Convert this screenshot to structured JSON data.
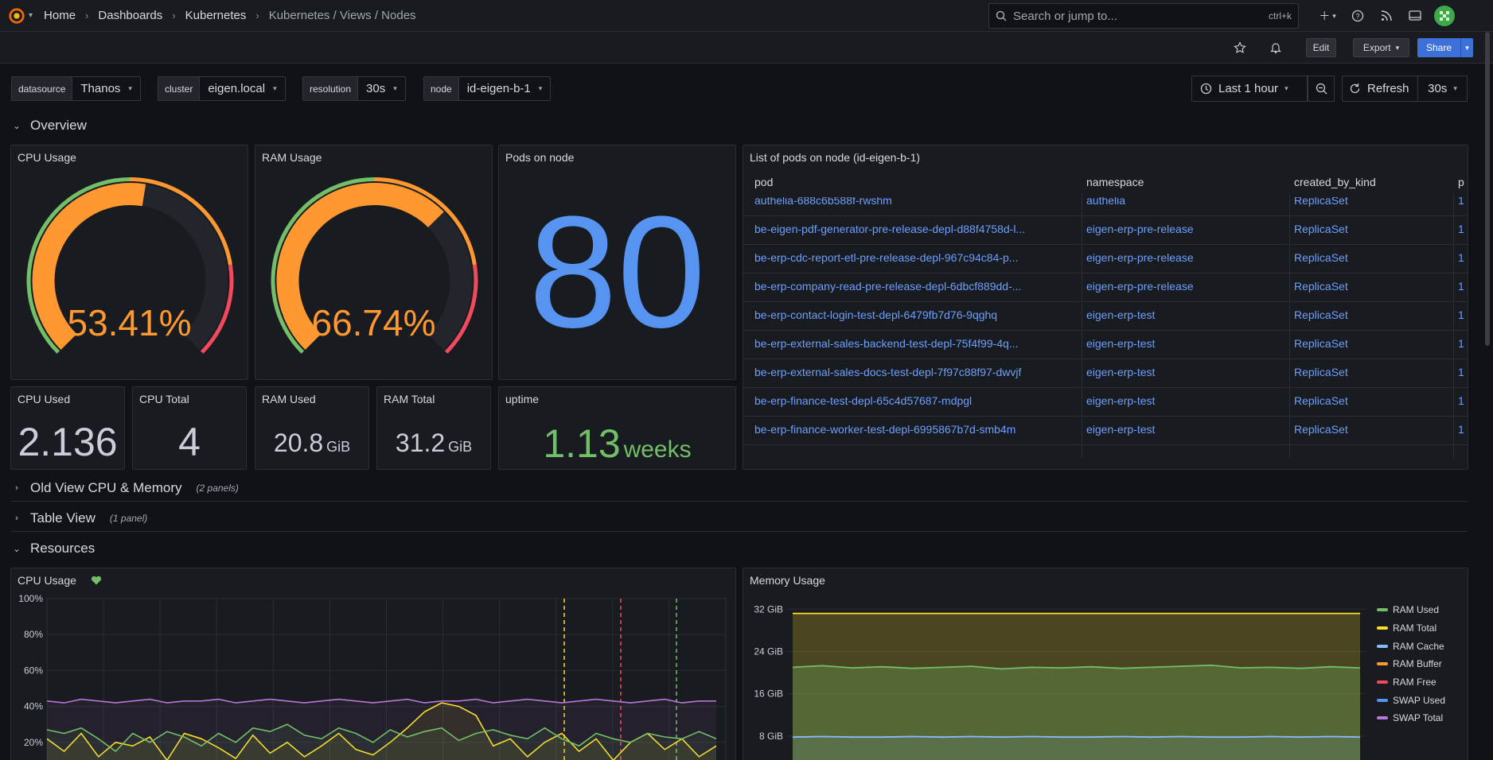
{
  "nav": {
    "breadcrumbs": [
      "Home",
      "Dashboards",
      "Kubernetes",
      "Kubernetes / Views / Nodes"
    ],
    "search_placeholder": "Search or jump to...",
    "search_shortcut": "ctrl+k"
  },
  "toolbar": {
    "edit_label": "Edit",
    "export_label": "Export",
    "share_label": "Share"
  },
  "variables": [
    {
      "label": "datasource",
      "value": "Thanos"
    },
    {
      "label": "cluster",
      "value": "eigen.local"
    },
    {
      "label": "resolution",
      "value": "30s"
    },
    {
      "label": "node",
      "value": "id-eigen-b-1"
    }
  ],
  "time": {
    "range": "Last 1 hour",
    "refresh_label": "Refresh",
    "refresh_interval": "30s"
  },
  "rows": {
    "overview": "Overview",
    "old_view": "Old View CPU & Memory",
    "old_view_count": "(2 panels)",
    "table_view": "Table View",
    "table_view_count": "(1 panel)",
    "resources": "Resources"
  },
  "panels": {
    "cpu_usage": {
      "title": "CPU Usage",
      "value": "53.41%",
      "percent": 53.41
    },
    "ram_usage": {
      "title": "RAM Usage",
      "value": "66.74%",
      "percent": 66.74
    },
    "pods": {
      "title": "Pods on node",
      "value": "80"
    },
    "cpu_used": {
      "title": "CPU Used",
      "value": "2.136"
    },
    "cpu_total": {
      "title": "CPU Total",
      "value": "4"
    },
    "ram_used": {
      "title": "RAM Used",
      "value": "20.8",
      "unit": "GiB"
    },
    "ram_total": {
      "title": "RAM Total",
      "value": "31.2",
      "unit": "GiB"
    },
    "uptime": {
      "title": "uptime",
      "value": "1.13",
      "unit": "weeks"
    },
    "pod_list": {
      "title": "List of pods on node (id-eigen-b-1)",
      "columns": [
        "pod",
        "namespace",
        "created_by_kind",
        "p"
      ],
      "rows": [
        [
          "authelia-688c6b588f-rwshm",
          "authelia",
          "ReplicaSet",
          "1"
        ],
        [
          "be-eigen-pdf-generator-pre-release-depl-d88f4758d-l...",
          "eigen-erp-pre-release",
          "ReplicaSet",
          "1"
        ],
        [
          "be-erp-cdc-report-etl-pre-release-depl-967c94c84-p...",
          "eigen-erp-pre-release",
          "ReplicaSet",
          "1"
        ],
        [
          "be-erp-company-read-pre-release-depl-6dbcf889dd-...",
          "eigen-erp-pre-release",
          "ReplicaSet",
          "1"
        ],
        [
          "be-erp-contact-login-test-depl-6479fb7d76-9qghq",
          "eigen-erp-test",
          "ReplicaSet",
          "1"
        ],
        [
          "be-erp-external-sales-backend-test-depl-75f4f99-4q...",
          "eigen-erp-test",
          "ReplicaSet",
          "1"
        ],
        [
          "be-erp-external-sales-docs-test-depl-7f97c88f97-dwvjf",
          "eigen-erp-test",
          "ReplicaSet",
          "1"
        ],
        [
          "be-erp-finance-test-depl-65c4d57687-mdpgl",
          "eigen-erp-test",
          "ReplicaSet",
          "1"
        ],
        [
          "be-erp-finance-worker-test-depl-6995867b7d-smb4m",
          "eigen-erp-test",
          "ReplicaSet",
          "1"
        ]
      ]
    },
    "cpu_chart": {
      "title": "CPU Usage",
      "yticks": [
        "100%",
        "80%",
        "60%",
        "40%",
        "20%"
      ]
    },
    "mem_chart": {
      "title": "Memory Usage",
      "yticks": [
        "32 GiB",
        "24 GiB",
        "16 GiB",
        "8 GiB"
      ],
      "legend": [
        {
          "name": "RAM Used",
          "color": "#73bf69"
        },
        {
          "name": "RAM Total",
          "color": "#fade2a"
        },
        {
          "name": "RAM Cache",
          "color": "#8ab8ff"
        },
        {
          "name": "RAM Buffer",
          "color": "#ff9830"
        },
        {
          "name": "RAM Free",
          "color": "#f2495c"
        },
        {
          "name": "SWAP Used",
          "color": "#5794f2"
        },
        {
          "name": "SWAP Total",
          "color": "#b877d9"
        }
      ]
    }
  },
  "chart_data": [
    {
      "type": "line",
      "title": "CPU Usage",
      "ylim": [
        0,
        100
      ],
      "yticks": [
        "100%",
        "80%",
        "60%",
        "40%",
        "20%"
      ],
      "series": [
        {
          "color": "#b877d9",
          "values": [
            43,
            42,
            44,
            43,
            42,
            43,
            44,
            42,
            43,
            43,
            44,
            42,
            43,
            44,
            43,
            42,
            43,
            44,
            43,
            42,
            43,
            44,
            42,
            43,
            43,
            44,
            42,
            43,
            44,
            43,
            42,
            43,
            44,
            43,
            42,
            43,
            44,
            42,
            43,
            43
          ]
        },
        {
          "color": "#fade2a",
          "values": [
            22,
            15,
            25,
            12,
            20,
            18,
            23,
            10,
            25,
            22,
            17,
            11,
            24,
            14,
            20,
            12,
            18,
            25,
            16,
            13,
            20,
            28,
            37,
            42,
            40,
            35,
            18,
            22,
            12,
            20,
            25,
            15,
            22,
            10,
            20,
            25,
            16,
            22,
            12,
            18
          ]
        },
        {
          "color": "#73bf69",
          "values": [
            27,
            25,
            28,
            22,
            15,
            25,
            20,
            26,
            23,
            18,
            25,
            20,
            28,
            26,
            30,
            24,
            22,
            28,
            25,
            20,
            27,
            23,
            26,
            28,
            21,
            25,
            27,
            24,
            22,
            28,
            22,
            18,
            25,
            22,
            20,
            25,
            23,
            22,
            26,
            22
          ]
        }
      ]
    },
    {
      "type": "area",
      "title": "Memory Usage",
      "ylim": [
        0,
        34
      ],
      "yticks": [
        "32 GiB",
        "24 GiB",
        "16 GiB",
        "8 GiB"
      ],
      "series": [
        {
          "name": "RAM Total",
          "color": "#fade2a",
          "values": [
            31.2,
            31.2,
            31.2,
            31.2,
            31.2,
            31.2,
            31.2,
            31.2,
            31.2,
            31.2,
            31.2,
            31.2,
            31.2,
            31.2,
            31.2,
            31.2,
            31.2,
            31.2,
            31.2,
            31.2
          ]
        },
        {
          "name": "RAM Used",
          "color": "#73bf69",
          "values": [
            21.0,
            21.3,
            20.9,
            21.1,
            20.8,
            21.0,
            21.2,
            20.7,
            21.0,
            20.9,
            21.1,
            20.8,
            21.0,
            21.2,
            21.4,
            20.9,
            21.0,
            20.8,
            21.1,
            20.9
          ]
        },
        {
          "name": "RAM Cache",
          "color": "#8ab8ff",
          "values": [
            7.8,
            7.9,
            7.8,
            7.8,
            7.9,
            7.8,
            7.9,
            7.8,
            7.9,
            7.8,
            7.8,
            7.9,
            7.8,
            7.9,
            7.8,
            7.8,
            7.9,
            7.8,
            7.9,
            7.8
          ]
        }
      ]
    }
  ]
}
